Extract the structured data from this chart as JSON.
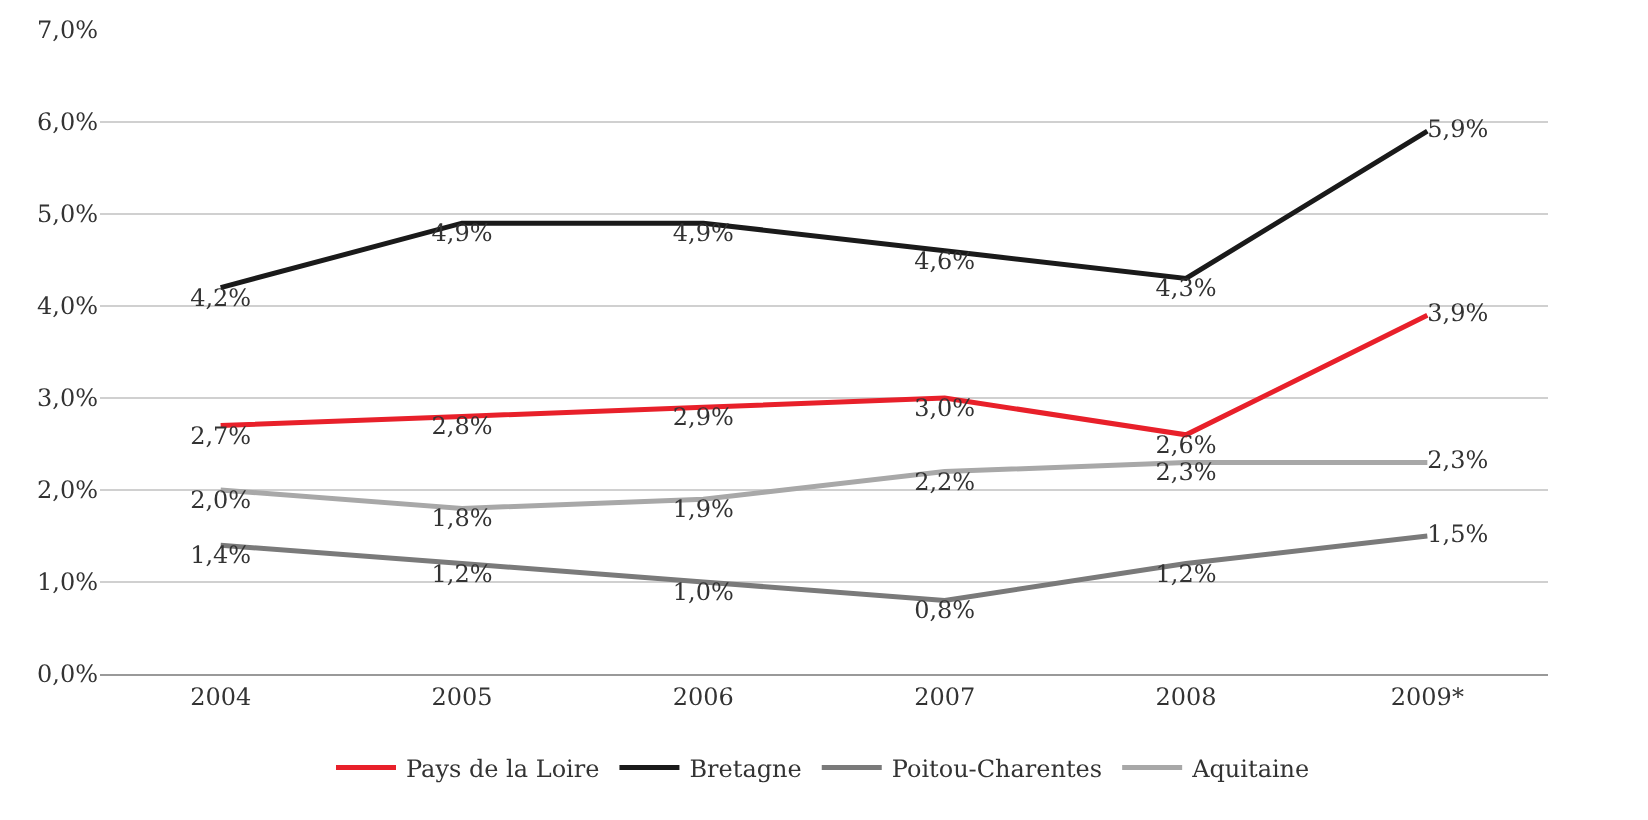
{
  "chart_data": {
    "type": "line",
    "categories": [
      "2004",
      "2005",
      "2006",
      "2007",
      "2008",
      "2009*"
    ],
    "series": [
      {
        "name": "Pays de la Loire",
        "color": "#e8202a",
        "values": [
          2.7,
          2.8,
          2.9,
          3.0,
          2.6,
          3.9
        ],
        "value_labels": [
          "2,7%",
          "2,8%",
          "2,9%",
          "3,0%",
          "2,6%",
          "3,9%"
        ]
      },
      {
        "name": "Bretagne",
        "color": "#1a1a1a",
        "values": [
          4.2,
          4.9,
          4.9,
          4.6,
          4.3,
          5.9
        ],
        "value_labels": [
          "4,2%",
          "4,9%",
          "4,9%",
          "4,6%",
          "4,3%",
          "5,9%"
        ]
      },
      {
        "name": "Poitou-Charentes",
        "color": "#7a7a7a",
        "values": [
          1.4,
          1.2,
          1.0,
          0.8,
          1.2,
          1.5
        ],
        "value_labels": [
          "1,4%",
          "1,2%",
          "1,0%",
          "0,8%",
          "1,2%",
          "1,5%"
        ]
      },
      {
        "name": "Aquitaine",
        "color": "#a8a8a8",
        "values": [
          2.0,
          1.8,
          1.9,
          2.2,
          2.3,
          2.3
        ],
        "value_labels": [
          "2,0%",
          "1,8%",
          "1,9%",
          "2,2%",
          "2,3%",
          "2,3%"
        ]
      }
    ],
    "ylim": [
      0,
      7
    ],
    "yticks": [
      {
        "value": 0,
        "label": "0,0%"
      },
      {
        "value": 1,
        "label": "1,0%"
      },
      {
        "value": 2,
        "label": "2,0%"
      },
      {
        "value": 3,
        "label": "3,0%"
      },
      {
        "value": 4,
        "label": "4,0%"
      },
      {
        "value": 5,
        "label": "5,0%"
      },
      {
        "value": 6,
        "label": "6,0%"
      },
      {
        "value": 7,
        "label": "7,0%"
      }
    ],
    "grid": "y",
    "legend": "bottom",
    "marker": "none",
    "line_style": "solid"
  }
}
